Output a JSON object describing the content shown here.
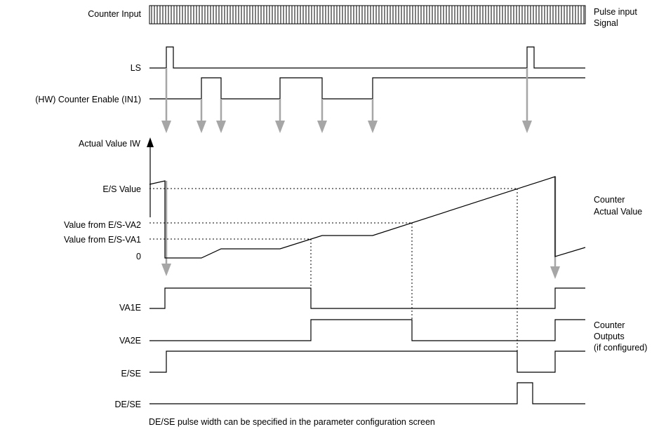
{
  "signals": {
    "counter_input": "Counter Input",
    "ls": "LS",
    "counter_enable": "(HW) Counter Enable (IN1)",
    "va1e": "VA1E",
    "va2e": "VA2E",
    "e_se": "E/SE",
    "de_se": "DE/SE"
  },
  "axis": {
    "title": "Actual Value IW",
    "es_value": "E/S Value",
    "va2": "Value from E/S-VA2",
    "va1": "Value from E/S-VA1",
    "zero": "0"
  },
  "annotations": {
    "pulse_line1": "Pulse input",
    "pulse_line2": "Signal",
    "actual_line1": "Counter",
    "actual_line2": "Actual Value",
    "outputs_line1": "Counter",
    "outputs_line2": "Outputs",
    "outputs_line3": "(if configured)"
  },
  "footnote": "DE/SE pulse width can be specified in the parameter configuration screen",
  "colors": {
    "line": "#000000",
    "arrow": "#a6a6a6",
    "background": "#ffffff"
  }
}
